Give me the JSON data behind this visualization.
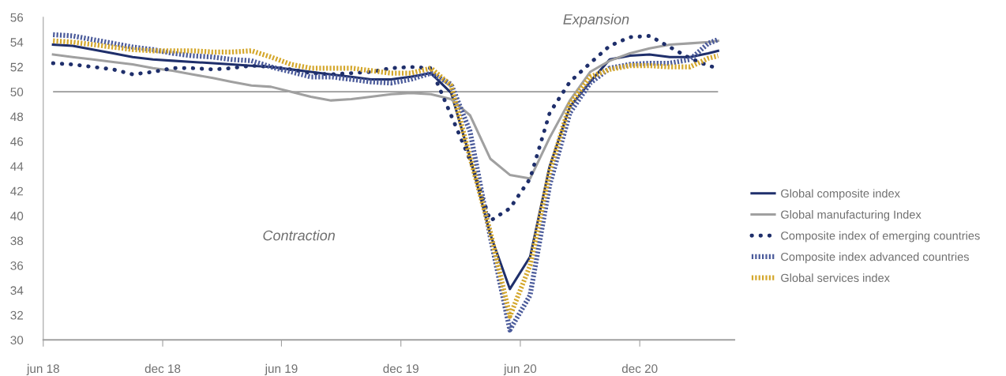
{
  "chart_data": {
    "type": "line",
    "x": [
      "2018-06-16",
      "2018-07-16",
      "2018-08-16",
      "2018-09-16",
      "2018-10-16",
      "2018-11-16",
      "2018-12-16",
      "2019-01-16",
      "2019-02-16",
      "2019-03-16",
      "2019-04-16",
      "2019-05-16",
      "2019-06-16",
      "2019-07-16",
      "2019-08-16",
      "2019-09-16",
      "2019-10-16",
      "2019-11-16",
      "2019-12-16",
      "2020-01-16",
      "2020-02-16",
      "2020-03-16",
      "2020-04-16",
      "2020-05-16",
      "2020-06-16",
      "2020-07-16",
      "2020-08-16",
      "2020-09-16",
      "2020-10-16",
      "2020-11-16",
      "2020-12-16",
      "2021-01-16",
      "2021-02-16",
      "2021-03-16",
      "2021-03-31"
    ],
    "series": [
      {
        "name": "Global composite index",
        "color": "#1f2f6b",
        "line_style": "solid",
        "values": [
          53.8,
          53.7,
          53.4,
          53.1,
          52.8,
          52.6,
          52.5,
          52.4,
          52.3,
          52.2,
          52.1,
          52.0,
          51.8,
          51.6,
          51.4,
          51.2,
          51.0,
          51.0,
          51.2,
          51.5,
          49.9,
          44.7,
          38.5,
          34.1,
          36.7,
          44.0,
          48.8,
          50.8,
          52.6,
          52.9,
          53.0,
          52.8,
          52.8,
          53.1,
          53.3
        ]
      },
      {
        "name": "Global manufacturing Index",
        "color": "#a0a0a0",
        "line_style": "solid",
        "values": [
          53.0,
          52.8,
          52.6,
          52.4,
          52.2,
          51.9,
          51.7,
          51.4,
          51.1,
          50.8,
          50.5,
          50.4,
          50.0,
          49.6,
          49.3,
          49.4,
          49.6,
          49.8,
          49.9,
          49.8,
          49.4,
          48.1,
          44.6,
          43.3,
          43.0,
          46.3,
          49.3,
          51.6,
          52.5,
          53.1,
          53.5,
          53.8,
          53.9,
          54.0,
          54.1
        ]
      },
      {
        "name": "Composite index of emerging countries",
        "color": "#1f2f6b",
        "line_style": "dotted",
        "values": [
          52.3,
          52.2,
          52.0,
          51.8,
          51.4,
          51.6,
          51.9,
          51.9,
          51.8,
          51.9,
          52.1,
          52.0,
          51.8,
          51.5,
          51.4,
          51.5,
          51.6,
          51.9,
          52.0,
          51.9,
          48.1,
          44.5,
          39.6,
          40.6,
          43.0,
          48.3,
          50.8,
          52.3,
          53.7,
          54.4,
          54.5,
          53.6,
          52.7,
          52.1,
          51.9
        ]
      },
      {
        "name": "Composite index advanced countries",
        "color": "#4a5a9a",
        "line_style": "dashed",
        "values": [
          54.6,
          54.5,
          54.2,
          53.9,
          53.6,
          53.4,
          53.1,
          52.9,
          52.8,
          52.6,
          52.5,
          52.0,
          51.6,
          51.2,
          51.2,
          51.0,
          50.8,
          50.7,
          51.0,
          51.5,
          50.6,
          46.8,
          38.3,
          30.8,
          33.6,
          42.5,
          48.3,
          50.7,
          51.9,
          52.2,
          52.3,
          52.3,
          52.6,
          53.9,
          54.2
        ]
      },
      {
        "name": "Global services index",
        "color": "#d4a72c",
        "line_style": "dashed",
        "values": [
          54.1,
          54.0,
          53.8,
          53.6,
          53.4,
          53.3,
          53.3,
          53.3,
          53.2,
          53.2,
          53.3,
          52.8,
          52.2,
          51.9,
          51.9,
          51.9,
          51.7,
          51.5,
          51.5,
          51.9,
          50.5,
          44.7,
          38.7,
          31.9,
          36.0,
          43.6,
          49.0,
          51.2,
          51.8,
          52.1,
          52.1,
          52.0,
          52.0,
          52.7,
          52.9
        ]
      }
    ],
    "xlim": [
      "2018-06-01",
      "2021-04-25"
    ],
    "xticks": [
      {
        "value": "2018-06-01",
        "label": "jun 18"
      },
      {
        "value": "2018-12-01",
        "label": "dec 18"
      },
      {
        "value": "2019-06-01",
        "label": "jun 19"
      },
      {
        "value": "2019-12-01",
        "label": "dec 19"
      },
      {
        "value": "2020-06-01",
        "label": "jun 20"
      },
      {
        "value": "2020-12-01",
        "label": "dec 20"
      }
    ],
    "ylim": [
      30,
      56
    ],
    "yticks": [
      30,
      32,
      34,
      36,
      38,
      40,
      42,
      44,
      46,
      48,
      50,
      52,
      54,
      56
    ],
    "ref_lines": [
      {
        "axis": "y",
        "value": 50,
        "color": "#707070"
      }
    ],
    "annotations": [
      "Expansion",
      "Contraction"
    ],
    "grid": false,
    "legend": "right",
    "marker": "none"
  }
}
